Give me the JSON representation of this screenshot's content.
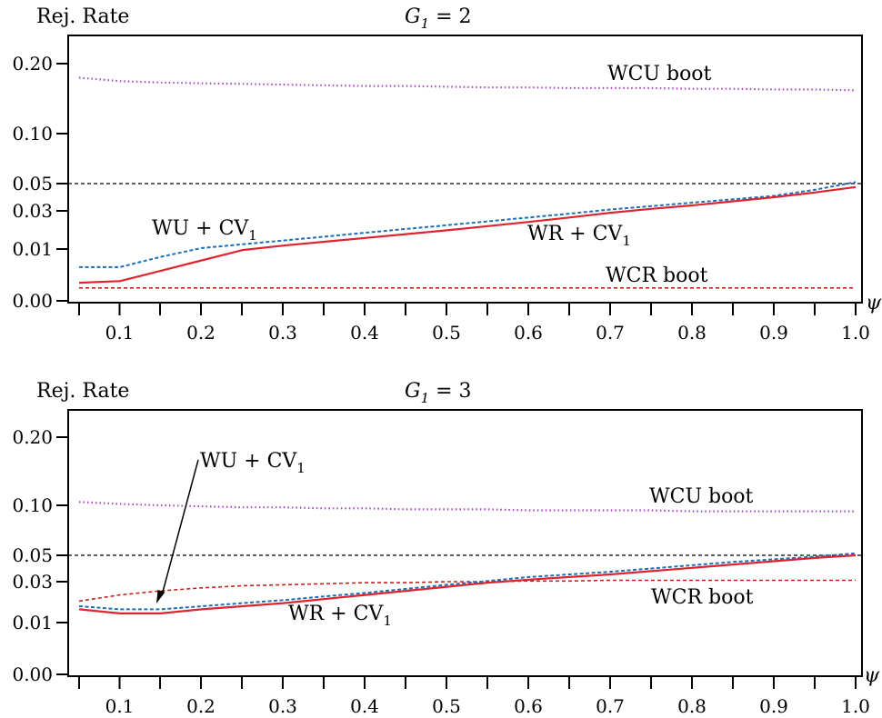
{
  "chart_data": [
    {
      "type": "line",
      "title": "G1 = 2",
      "title_main": "G",
      "title_sub": "1",
      "title_rest": " = 2",
      "ylabel": "Rej. Rate",
      "xlabel": "ψ",
      "yticks": [
        "0.20",
        "0.10",
        "0.05",
        "0.03",
        "0.01",
        "0.00"
      ],
      "ytick_values": [
        0.2,
        0.1,
        0.05,
        0.03,
        0.01,
        0.0
      ],
      "xticks": [
        "0.1",
        "0.2",
        "0.3",
        "0.4",
        "0.5",
        "0.6",
        "0.7",
        "0.8",
        "0.9",
        "1.0"
      ],
      "xlim": [
        0.05,
        1.0
      ],
      "reference_line": 0.05,
      "x": [
        0.05,
        0.1,
        0.15,
        0.2,
        0.25,
        0.3,
        0.35,
        0.4,
        0.45,
        0.5,
        0.55,
        0.6,
        0.65,
        0.7,
        0.75,
        0.8,
        0.85,
        0.9,
        0.95,
        1.0
      ],
      "series": [
        {
          "name": "WCU boot",
          "color": "#a64dbf",
          "style": "dotted",
          "values": [
            0.18,
            0.175,
            0.173,
            0.172,
            0.171,
            0.17,
            0.169,
            0.168,
            0.168,
            0.167,
            0.166,
            0.166,
            0.165,
            0.165,
            0.165,
            0.164,
            0.164,
            0.163,
            0.163,
            0.162
          ]
        },
        {
          "name": "WU + CV1",
          "label_main": "WU + CV",
          "label_sub": "1",
          "color": "#1f6fb5",
          "style": "dashed",
          "values": [
            0.0065,
            0.0065,
            0.0085,
            0.0105,
            0.0125,
            0.0145,
            0.0165,
            0.0185,
            0.0205,
            0.0225,
            0.0245,
            0.0265,
            0.0285,
            0.031,
            0.0335,
            0.036,
            0.0385,
            0.041,
            0.0455,
            0.0515
          ]
        },
        {
          "name": "WR + CV1",
          "label_main": "WR + CV",
          "label_sub": "1",
          "color": "#e0242f",
          "style": "solid",
          "values": [
            0.0035,
            0.0038,
            0.0058,
            0.0078,
            0.0098,
            0.0118,
            0.0138,
            0.0158,
            0.0178,
            0.0198,
            0.022,
            0.0242,
            0.0265,
            0.029,
            0.0315,
            0.034,
            0.037,
            0.04,
            0.0435,
            0.0475
          ]
        },
        {
          "name": "WCR boot",
          "color": "#c4221f",
          "style": "dashed",
          "values": [
            0.0025,
            0.0025,
            0.0025,
            0.0025,
            0.0025,
            0.0025,
            0.0025,
            0.0025,
            0.0025,
            0.0025,
            0.0025,
            0.0025,
            0.0025,
            0.0025,
            0.0025,
            0.0025,
            0.0025,
            0.0025,
            0.0025,
            0.0025
          ]
        }
      ]
    },
    {
      "type": "line",
      "title": "G1 = 3",
      "title_main": "G",
      "title_sub": "1",
      "title_rest": " = 3",
      "ylabel": "Rej. Rate",
      "xlabel": "ψ",
      "yticks": [
        "0.20",
        "0.10",
        "0.05",
        "0.03",
        "0.01",
        "0.00"
      ],
      "ytick_values": [
        0.2,
        0.1,
        0.05,
        0.03,
        0.01,
        0.0
      ],
      "xticks": [
        "0.1",
        "0.2",
        "0.3",
        "0.4",
        "0.5",
        "0.6",
        "0.7",
        "0.8",
        "0.9",
        "1.0"
      ],
      "xlim": [
        0.05,
        1.0
      ],
      "reference_line": 0.05,
      "x": [
        0.05,
        0.1,
        0.15,
        0.2,
        0.25,
        0.3,
        0.35,
        0.4,
        0.45,
        0.5,
        0.55,
        0.6,
        0.65,
        0.7,
        0.75,
        0.8,
        0.85,
        0.9,
        0.95,
        1.0
      ],
      "series": [
        {
          "name": "WCU boot",
          "color": "#a64dbf",
          "style": "dotted",
          "values": [
            0.105,
            0.102,
            0.1,
            0.099,
            0.098,
            0.098,
            0.097,
            0.097,
            0.096,
            0.096,
            0.096,
            0.095,
            0.095,
            0.095,
            0.095,
            0.094,
            0.094,
            0.094,
            0.094,
            0.094
          ]
        },
        {
          "name": "WU + CV1",
          "label_main": "WU + CV",
          "label_sub": "1",
          "color": "#1f6fb5",
          "style": "dashed",
          "values": [
            0.018,
            0.0165,
            0.0165,
            0.018,
            0.0195,
            0.021,
            0.0228,
            0.0245,
            0.0265,
            0.0285,
            0.0305,
            0.0335,
            0.0355,
            0.0375,
            0.04,
            0.0425,
            0.045,
            0.047,
            0.049,
            0.052
          ]
        },
        {
          "name": "WR + CV1",
          "label_main": "WR + CV",
          "label_sub": "1",
          "color": "#e0242f",
          "style": "solid",
          "values": [
            0.0165,
            0.0145,
            0.0145,
            0.0165,
            0.018,
            0.0195,
            0.0215,
            0.0235,
            0.0255,
            0.0275,
            0.0295,
            0.0315,
            0.0335,
            0.0355,
            0.038,
            0.0405,
            0.043,
            0.0455,
            0.048,
            0.05
          ]
        },
        {
          "name": "WCR boot",
          "color": "#c4221f",
          "style": "dashed",
          "values": [
            0.0205,
            0.0235,
            0.0255,
            0.027,
            0.028,
            0.0285,
            0.029,
            0.0295,
            0.0295,
            0.03,
            0.03,
            0.0305,
            0.0305,
            0.031,
            0.031,
            0.031,
            0.031,
            0.031,
            0.031,
            0.031
          ]
        }
      ]
    }
  ]
}
